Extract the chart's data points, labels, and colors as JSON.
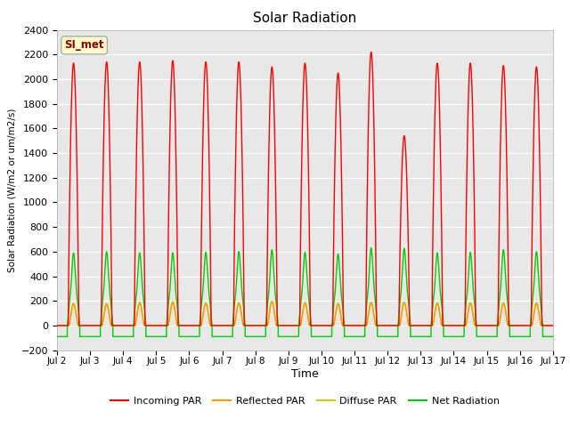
{
  "title": "Solar Radiation",
  "ylabel": "Solar Radiation (W/m2 or um/m2/s)",
  "xlabel": "Time",
  "ylim": [
    -200,
    2400
  ],
  "yticks": [
    -200,
    0,
    200,
    400,
    600,
    800,
    1000,
    1200,
    1400,
    1600,
    1800,
    2000,
    2200,
    2400
  ],
  "xtick_labels": [
    "Jul 2",
    "Jul 3",
    "Jul 4",
    "Jul 5",
    "Jul 6",
    "Jul 7",
    "Jul 8",
    "Jul 9",
    "Jul 10",
    "Jul 11",
    "Jul 12",
    "Jul 13",
    "Jul 14",
    "Jul 15",
    "Jul 16",
    "Jul 17"
  ],
  "annotation_text": "SI_met",
  "annotation_bg": "#ffffcc",
  "annotation_border": "#aaaaaa",
  "colors": {
    "incoming": "#ff0000",
    "reflected": "#ff9900",
    "diffuse": "#cccc00",
    "net": "#00cc00"
  },
  "legend_labels": [
    "Incoming PAR",
    "Reflected PAR",
    "Diffuse PAR",
    "Net Radiation"
  ],
  "bg_color_light": "#e8e8e8",
  "bg_color_dark": "#d0d0d0",
  "line_width": 1.0,
  "n_days": 15,
  "pts_per_day": 288,
  "day_peaks_incoming": [
    2130,
    2140,
    2140,
    2150,
    2140,
    2140,
    2100,
    2130,
    2050,
    2220,
    1540,
    2130,
    2130,
    2110,
    2100
  ],
  "day_peaks_net": [
    590,
    600,
    590,
    590,
    595,
    600,
    615,
    595,
    580,
    630,
    625,
    590,
    595,
    615,
    600
  ],
  "day_peaks_reflected": [
    175,
    170,
    180,
    185,
    175,
    180,
    195,
    180,
    175,
    185,
    185,
    180,
    180,
    180,
    180
  ],
  "day_peaks_diffuse": [
    180,
    180,
    190,
    195,
    185,
    185,
    195,
    185,
    180,
    190,
    190,
    185,
    185,
    185,
    185
  ],
  "night_net": -90,
  "figsize": [
    6.4,
    4.8
  ],
  "dpi": 100
}
